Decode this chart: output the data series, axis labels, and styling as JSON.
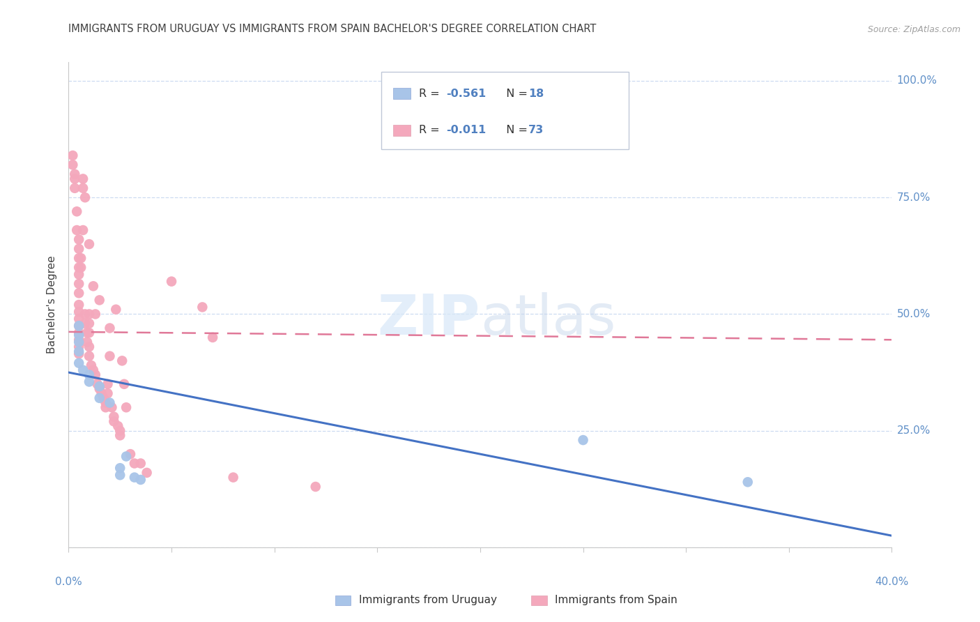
{
  "title": "IMMIGRANTS FROM URUGUAY VS IMMIGRANTS FROM SPAIN BACHELOR'S DEGREE CORRELATION CHART",
  "source": "Source: ZipAtlas.com",
  "ylabel": "Bachelor's Degree",
  "yticks": [
    0,
    0.25,
    0.5,
    0.75,
    1.0
  ],
  "ytick_labels": [
    "",
    "25.0%",
    "50.0%",
    "75.0%",
    "100.0%"
  ],
  "xticks": [
    0,
    0.05,
    0.1,
    0.15,
    0.2,
    0.25,
    0.3,
    0.35,
    0.4
  ],
  "blue_color": "#A8C4E8",
  "pink_color": "#F4A8BC",
  "blue_line_color": "#4472C4",
  "pink_line_color": "#E07898",
  "title_color": "#404040",
  "axis_label_color": "#6090C8",
  "source_color": "#A0A0A0",
  "legend_text_color": "#333333",
  "legend_value_color": "#5080C0",
  "blue_scatter": [
    [
      0.005,
      0.475
    ],
    [
      0.005,
      0.455
    ],
    [
      0.005,
      0.44
    ],
    [
      0.005,
      0.42
    ],
    [
      0.005,
      0.395
    ],
    [
      0.007,
      0.38
    ],
    [
      0.01,
      0.37
    ],
    [
      0.01,
      0.355
    ],
    [
      0.015,
      0.345
    ],
    [
      0.015,
      0.32
    ],
    [
      0.02,
      0.31
    ],
    [
      0.025,
      0.17
    ],
    [
      0.025,
      0.155
    ],
    [
      0.028,
      0.195
    ],
    [
      0.032,
      0.15
    ],
    [
      0.035,
      0.145
    ],
    [
      0.25,
      0.23
    ],
    [
      0.33,
      0.14
    ]
  ],
  "pink_scatter": [
    [
      0.002,
      0.84
    ],
    [
      0.002,
      0.82
    ],
    [
      0.003,
      0.8
    ],
    [
      0.003,
      0.79
    ],
    [
      0.003,
      0.77
    ],
    [
      0.004,
      0.72
    ],
    [
      0.004,
      0.68
    ],
    [
      0.005,
      0.66
    ],
    [
      0.005,
      0.64
    ],
    [
      0.005,
      0.62
    ],
    [
      0.005,
      0.6
    ],
    [
      0.005,
      0.585
    ],
    [
      0.005,
      0.565
    ],
    [
      0.005,
      0.545
    ],
    [
      0.005,
      0.52
    ],
    [
      0.005,
      0.505
    ],
    [
      0.005,
      0.49
    ],
    [
      0.005,
      0.475
    ],
    [
      0.005,
      0.46
    ],
    [
      0.005,
      0.445
    ],
    [
      0.005,
      0.43
    ],
    [
      0.005,
      0.415
    ],
    [
      0.006,
      0.62
    ],
    [
      0.006,
      0.6
    ],
    [
      0.007,
      0.79
    ],
    [
      0.007,
      0.77
    ],
    [
      0.007,
      0.68
    ],
    [
      0.008,
      0.75
    ],
    [
      0.008,
      0.5
    ],
    [
      0.008,
      0.48
    ],
    [
      0.009,
      0.46
    ],
    [
      0.009,
      0.44
    ],
    [
      0.01,
      0.65
    ],
    [
      0.01,
      0.5
    ],
    [
      0.01,
      0.48
    ],
    [
      0.01,
      0.46
    ],
    [
      0.01,
      0.43
    ],
    [
      0.01,
      0.41
    ],
    [
      0.011,
      0.39
    ],
    [
      0.012,
      0.56
    ],
    [
      0.012,
      0.38
    ],
    [
      0.013,
      0.5
    ],
    [
      0.013,
      0.37
    ],
    [
      0.014,
      0.35
    ],
    [
      0.015,
      0.53
    ],
    [
      0.015,
      0.34
    ],
    [
      0.016,
      0.33
    ],
    [
      0.017,
      0.32
    ],
    [
      0.018,
      0.31
    ],
    [
      0.018,
      0.3
    ],
    [
      0.019,
      0.35
    ],
    [
      0.019,
      0.33
    ],
    [
      0.02,
      0.47
    ],
    [
      0.02,
      0.41
    ],
    [
      0.021,
      0.3
    ],
    [
      0.022,
      0.28
    ],
    [
      0.022,
      0.27
    ],
    [
      0.023,
      0.51
    ],
    [
      0.024,
      0.26
    ],
    [
      0.025,
      0.25
    ],
    [
      0.025,
      0.24
    ],
    [
      0.026,
      0.4
    ],
    [
      0.027,
      0.35
    ],
    [
      0.028,
      0.3
    ],
    [
      0.03,
      0.2
    ],
    [
      0.032,
      0.18
    ],
    [
      0.035,
      0.18
    ],
    [
      0.038,
      0.16
    ],
    [
      0.05,
      0.57
    ],
    [
      0.065,
      0.515
    ],
    [
      0.07,
      0.45
    ],
    [
      0.08,
      0.15
    ],
    [
      0.12,
      0.13
    ]
  ],
  "blue_line_x": [
    0.0,
    0.4
  ],
  "blue_line_y": [
    0.375,
    0.025
  ],
  "pink_line_x": [
    0.0,
    0.4
  ],
  "pink_line_y": [
    0.462,
    0.445
  ],
  "xlim": [
    0,
    0.4
  ],
  "ylim": [
    0,
    1.04
  ]
}
